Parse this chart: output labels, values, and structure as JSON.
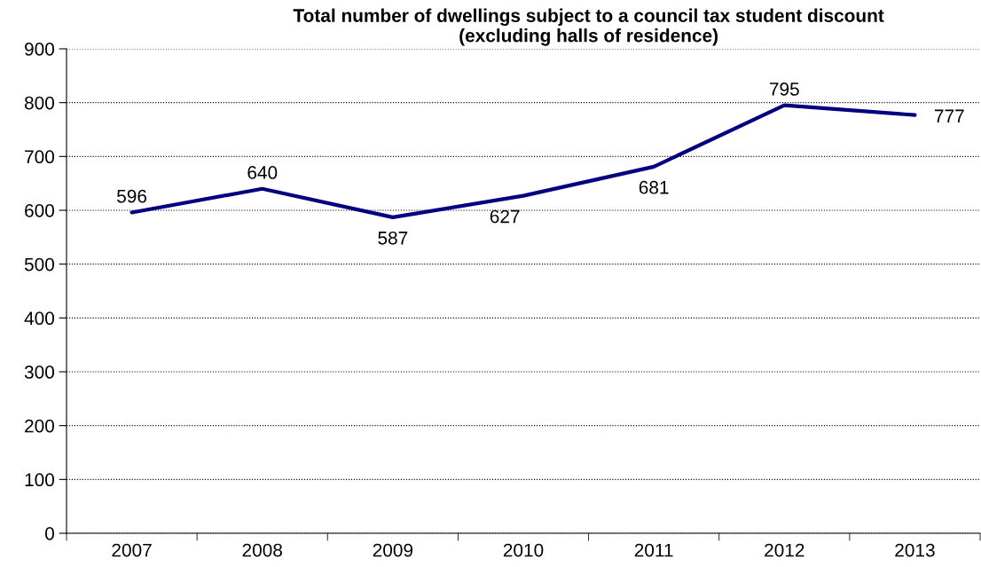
{
  "chart_data": {
    "type": "line",
    "title": "Total number of dwellings subject to a council tax student discount\n(excluding halls of residence)",
    "categories": [
      "2007",
      "2008",
      "2009",
      "2010",
      "2011",
      "2012",
      "2013"
    ],
    "series": [
      {
        "color": "#000080",
        "values": [
          596,
          640,
          587,
          627,
          681,
          795,
          777
        ]
      }
    ],
    "ylim": [
      0,
      900
    ],
    "yticks": [
      0,
      100,
      200,
      300,
      400,
      500,
      600,
      700,
      800,
      900
    ],
    "grid": "y",
    "data_labels": true,
    "marker": "none",
    "line_style": "solid"
  }
}
